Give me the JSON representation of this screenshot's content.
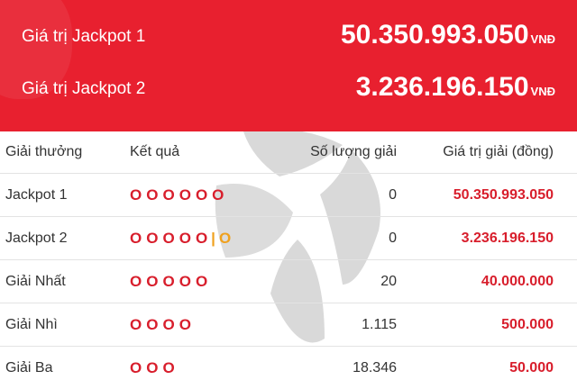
{
  "header": {
    "jackpots": [
      {
        "label": "Giá trị Jackpot 1",
        "value": "50.350.993.050",
        "unit": "VNĐ"
      },
      {
        "label": "Giá trị Jackpot 2",
        "value": "3.236.196.150",
        "unit": "VNĐ"
      }
    ]
  },
  "table": {
    "columns": [
      "Giải thưởng",
      "Kết quả",
      "Số lượng giải",
      "Giá trị giải (đồng)"
    ],
    "rows": [
      {
        "name": "Jackpot 1",
        "result": "O O O O O O",
        "count": "0",
        "prize": "50.350.993.050"
      },
      {
        "name": "Jackpot 2",
        "result": "O O O O O | O",
        "count": "0",
        "prize": "3.236.196.150"
      },
      {
        "name": "Giải Nhất",
        "result": "O O O O O",
        "count": "20",
        "prize": "40.000.000"
      },
      {
        "name": "Giải Nhì",
        "result": "O O O O",
        "count": "1.115",
        "prize": "500.000"
      },
      {
        "name": "Giải Ba",
        "result": "O O O",
        "count": "18.346",
        "prize": "50.000"
      }
    ]
  },
  "colors": {
    "header_bg": "#e8202f",
    "prize_red": "#d81e2c",
    "special_ball": "#f0a11d"
  }
}
